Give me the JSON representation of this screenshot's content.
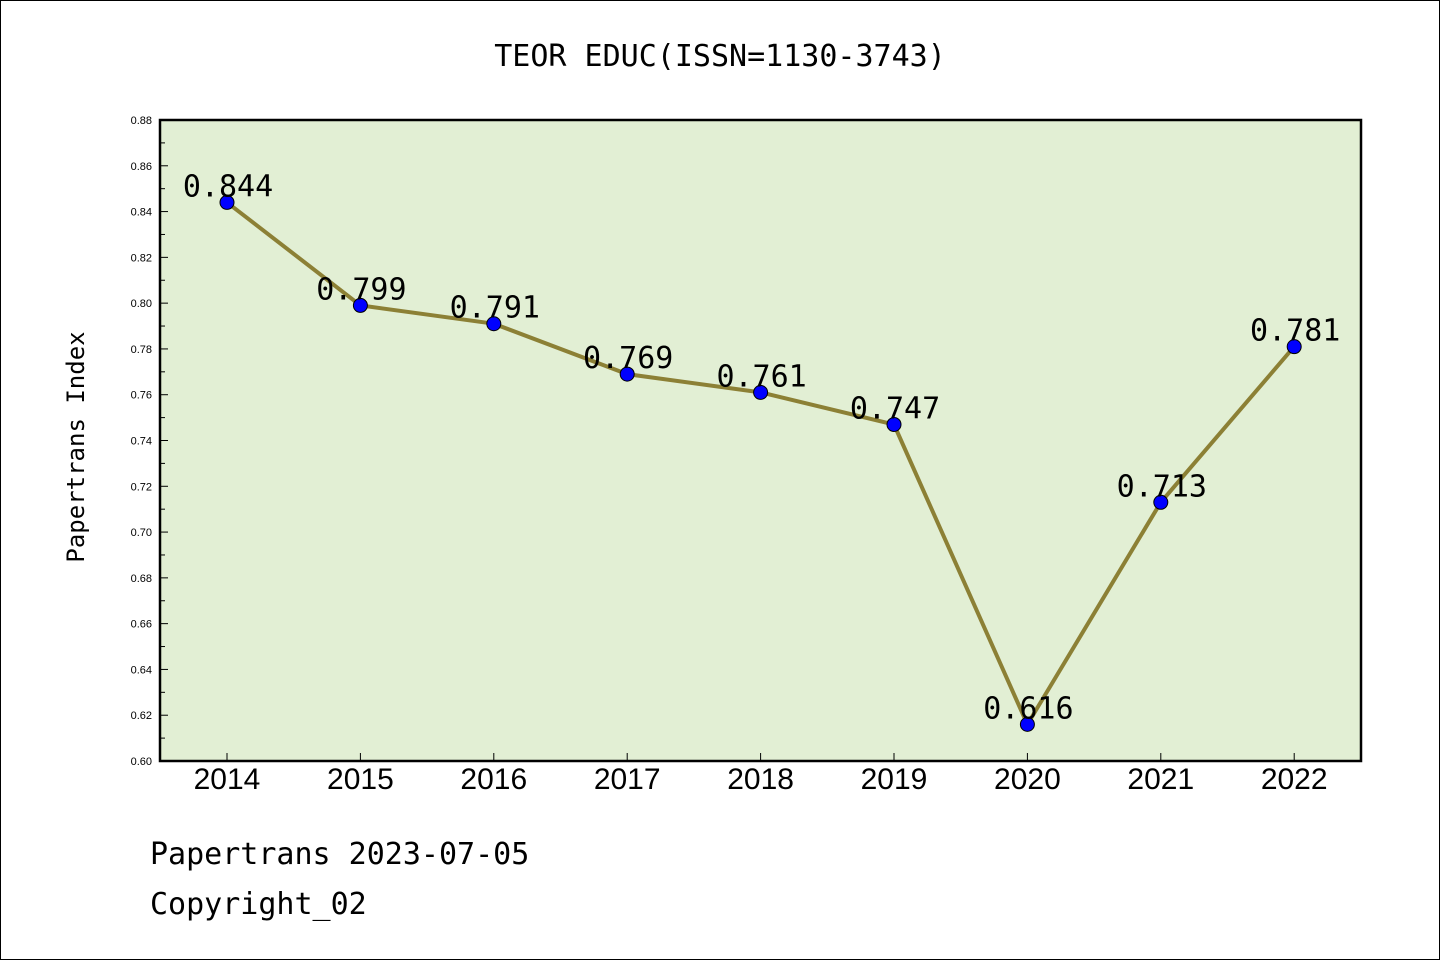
{
  "chart_data": {
    "type": "line",
    "title": "TEOR EDUC(ISSN=1130-3743)",
    "xlabel": "",
    "ylabel": "Papertrans Index",
    "categories": [
      "2014",
      "2015",
      "2016",
      "2017",
      "2018",
      "2019",
      "2020",
      "2021",
      "2022"
    ],
    "values": [
      0.844,
      0.799,
      0.791,
      0.769,
      0.761,
      0.747,
      0.616,
      0.713,
      0.781
    ],
    "data_labels": [
      "0.844",
      "0.799",
      "0.791",
      "0.769",
      "0.761",
      "0.747",
      "0.616",
      "0.713",
      "0.781"
    ],
    "ylim": [
      0.6,
      0.88
    ],
    "yticks": [
      "0.60",
      "0.62",
      "0.64",
      "0.66",
      "0.68",
      "0.70",
      "0.72",
      "0.74",
      "0.76",
      "0.78",
      "0.80",
      "0.82",
      "0.84",
      "0.86",
      "0.88"
    ],
    "grid": false,
    "legend": "none",
    "colors": {
      "plot_background": "#e2efd4",
      "line": "#8c8035",
      "marker": "#0000ff"
    }
  },
  "footer": {
    "line1": "Papertrans 2023-07-05",
    "line2": "Copyright_02"
  }
}
